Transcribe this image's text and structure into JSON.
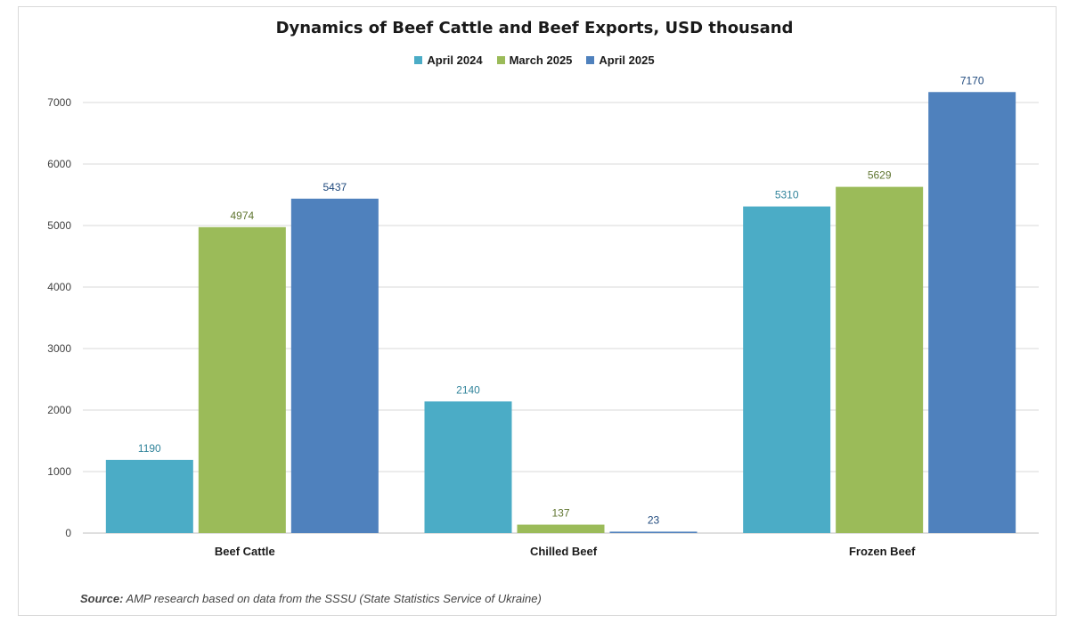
{
  "chart_data": {
    "type": "bar",
    "title": "Dynamics of Beef Cattle and Beef Exports, USD thousand",
    "categories": [
      "Beef Cattle",
      "Chilled Beef",
      "Frozen Beef"
    ],
    "series": [
      {
        "name": "April 2024",
        "color": "#4bacc6",
        "label_color": "#31849b",
        "values": [
          1190,
          2140,
          5310
        ]
      },
      {
        "name": "March 2025",
        "color": "#9bbb59",
        "label_color": "#5f7530",
        "values": [
          4974,
          137,
          5629
        ]
      },
      {
        "name": "April 2025",
        "color": "#4f81bd",
        "label_color": "#1f497d",
        "values": [
          5437,
          23,
          7170
        ]
      }
    ],
    "yticks": [
      "0",
      "1000",
      "2000",
      "3000",
      "4000",
      "5000",
      "6000",
      "7000"
    ],
    "ylim": [
      0,
      7000
    ],
    "grid": true,
    "legend_position": "top"
  },
  "source": {
    "label": "Source:",
    "text": "AMP research based on data from the SSSU (State Statistics Service of Ukraine)"
  }
}
